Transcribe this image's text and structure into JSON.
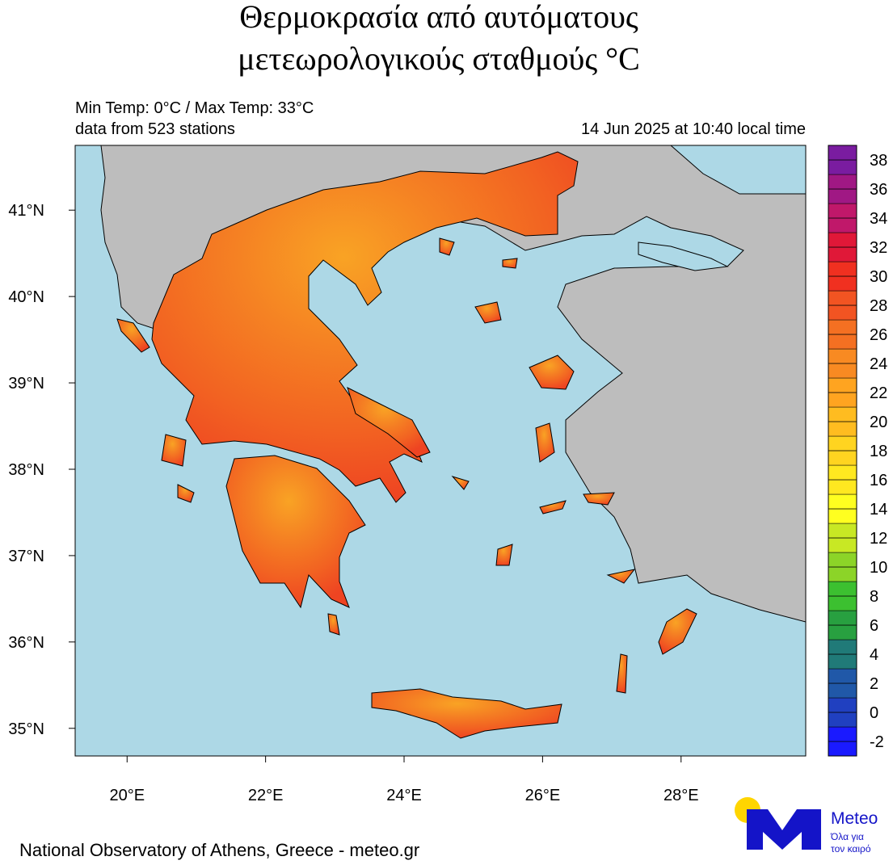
{
  "title_lines": [
    "Θερμοκρασία από αυτόματους",
    "μετεωρολογικούς σταθμούς °C"
  ],
  "info_left": [
    "Min Temp: 0°C / Max Temp: 33°C",
    "data from 523 stations"
  ],
  "info_right": "14 Jun 2025 at 10:40 local time",
  "map": {
    "xlim": [
      19.25,
      29.8
    ],
    "ylim": [
      34.68,
      41.75
    ],
    "xticks": [
      {
        "value": 20,
        "label": "20°E"
      },
      {
        "value": 22,
        "label": "22°E"
      },
      {
        "value": 24,
        "label": "24°E"
      },
      {
        "value": 26,
        "label": "26°E"
      },
      {
        "value": 28,
        "label": "28°E"
      }
    ],
    "yticks": [
      {
        "value": 35,
        "label": "35°N"
      },
      {
        "value": 36,
        "label": "36°N"
      },
      {
        "value": 37,
        "label": "37°N"
      },
      {
        "value": 38,
        "label": "38°N"
      },
      {
        "value": 39,
        "label": "39°N"
      },
      {
        "value": 40,
        "label": "40°N"
      },
      {
        "value": 41,
        "label": "41°N"
      }
    ]
  },
  "colorbar": {
    "lim": [
      -3,
      39
    ],
    "ticks": [
      -2,
      0,
      2,
      4,
      6,
      8,
      10,
      12,
      14,
      16,
      18,
      20,
      22,
      24,
      26,
      28,
      30,
      32,
      34,
      36,
      38
    ],
    "colors": [
      "#1a1aff",
      "#2040c0",
      "#2058a8",
      "#207a78",
      "#28a040",
      "#3cc030",
      "#8cd428",
      "#c8e824",
      "#ffff20",
      "#ffe820",
      "#ffd420",
      "#ffbc20",
      "#ffa420",
      "#f88a22",
      "#f47022",
      "#f25422",
      "#f03020",
      "#e01838",
      "#c0186a",
      "#a01884",
      "#7a1ca0"
    ]
  },
  "footer": "National Observatory of Athens, Greece - meteo.gr",
  "logo": {
    "name": "Meteo",
    "tagline": [
      "Όλα για",
      "τον καιρό"
    ]
  }
}
